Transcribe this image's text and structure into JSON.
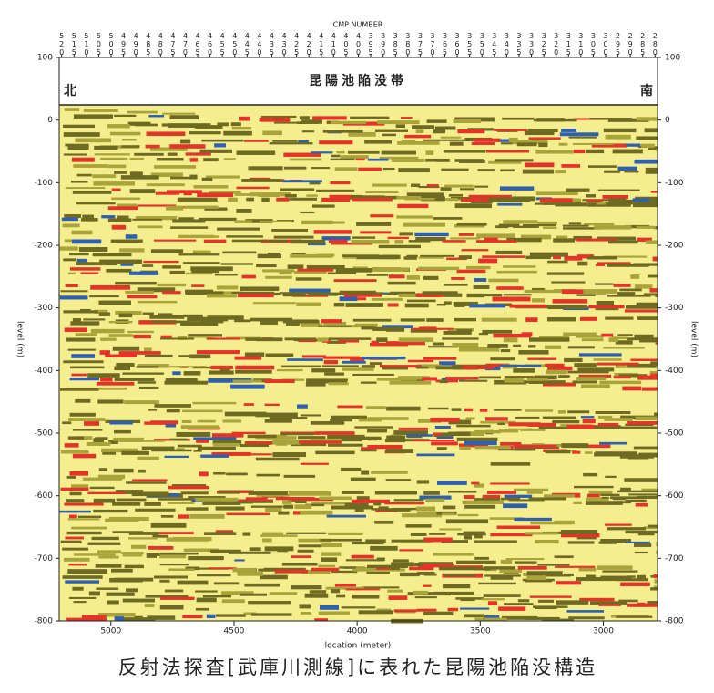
{
  "chart_data": {
    "type": "seismic",
    "title": "反射法探査[武庫川測線]に表れた昆陽池陥没構造",
    "annotation": "昆陽池陥没帯",
    "left_label": "北",
    "right_label": "南",
    "x_label": "location (meter)",
    "x2_label": "CMP NUMBER",
    "y_label": "level (m)",
    "xlim": [
      5210,
      2780
    ],
    "xticks": [
      5000,
      4500,
      4000,
      3500,
      3000
    ],
    "x2lim": [
      521,
      279
    ],
    "x2ticks": [
      520,
      515,
      510,
      505,
      500,
      495,
      490,
      485,
      480,
      475,
      470,
      465,
      460,
      455,
      450,
      445,
      440,
      435,
      430,
      425,
      420,
      415,
      410,
      405,
      400,
      395,
      390,
      385,
      380,
      375,
      370,
      365,
      360,
      355,
      350,
      345,
      340,
      335,
      330,
      325,
      320,
      315,
      310,
      305,
      300,
      295,
      290,
      285,
      280
    ],
    "ylim": [
      -800,
      100
    ],
    "yticks": [
      100,
      0,
      -100,
      -200,
      -300,
      -400,
      -500,
      -600,
      -700,
      -800
    ]
  }
}
